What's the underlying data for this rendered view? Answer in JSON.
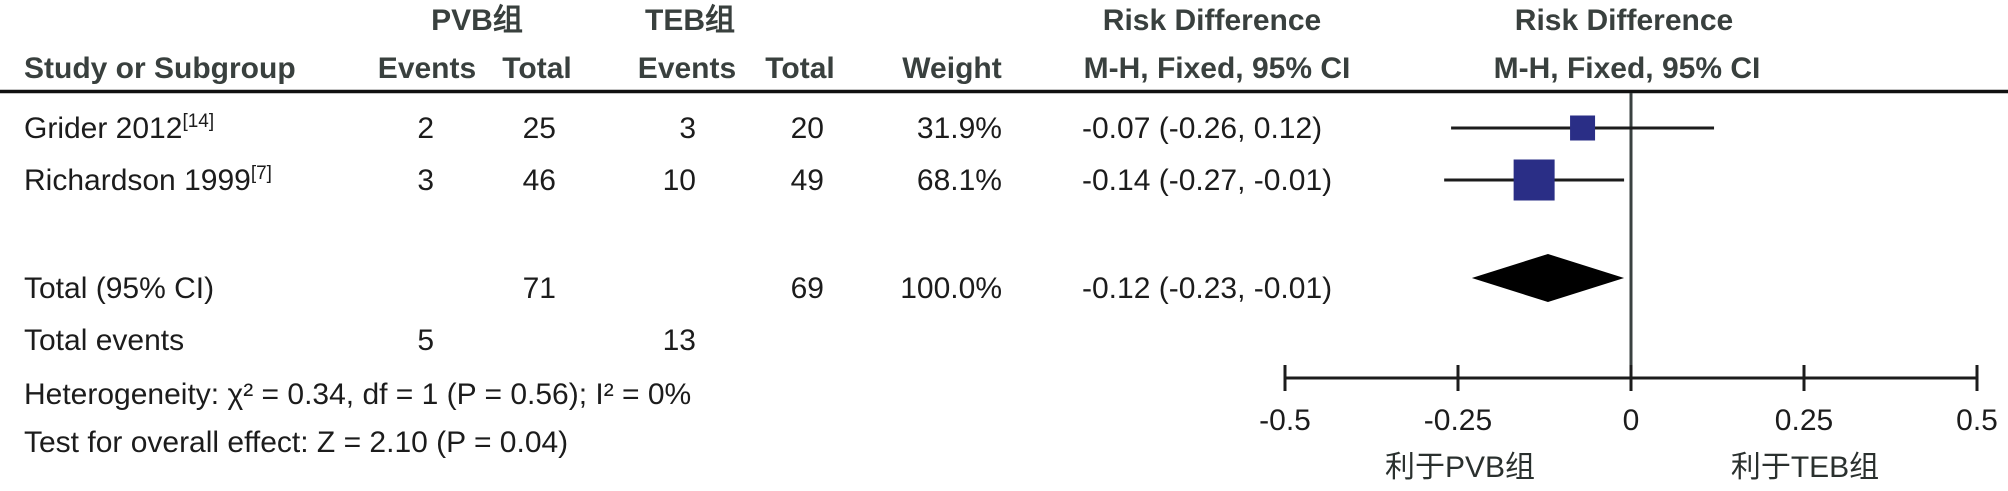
{
  "header": {
    "group1": "PVB组",
    "group2": "TEB组",
    "risk_difference": "Risk Difference",
    "method": "M-H, Fixed, 95% CI",
    "study": "Study or Subgroup",
    "events": "Events",
    "total": "Total",
    "weight": "Weight"
  },
  "rows": [
    {
      "study": "Grider 2012",
      "ref": "[14]",
      "e1": "2",
      "t1": "25",
      "e2": "3",
      "t2": "20",
      "weight": "31.9%",
      "ci": "-0.07 (-0.26, 0.12)"
    },
    {
      "study": "Richardson 1999",
      "ref": "[7]",
      "e1": "3",
      "t1": "46",
      "e2": "10",
      "t2": "49",
      "weight": "68.1%",
      "ci": "-0.14 (-0.27, -0.01)"
    }
  ],
  "total_row": {
    "label": "Total (95% CI)",
    "t1": "71",
    "t2": "69",
    "weight": "100.0%",
    "ci": "-0.12 (-0.23, -0.01)"
  },
  "total_events": {
    "label": "Total events",
    "e1": "5",
    "e2": "13"
  },
  "footer": {
    "heterogeneity": "Heterogeneity: χ² = 0.34, df = 1 (P = 0.56); I² = 0%",
    "overall": "Test for overall effect: Z = 2.10 (P = 0.04)"
  },
  "axis": {
    "tick_labels": [
      "-0.5",
      "-0.25",
      "0",
      "0.25",
      "0.5"
    ],
    "left_label": "利于PVB组",
    "right_label": "利于TEB组"
  },
  "colors": {
    "square": "#2a2e86",
    "diamond": "#000000",
    "ci_line": "#1c1c1c",
    "axis_line": "#1c1c1c",
    "zero_line": "#3a4140",
    "rule": "#111111"
  },
  "chart_data": {
    "type": "forest",
    "effect_measure": "Risk Difference (M-H, Fixed, 95% CI)",
    "x_range": [
      -0.5,
      0.5
    ],
    "x_ticks": [
      -0.5,
      -0.25,
      0,
      0.25,
      0.5
    ],
    "studies": [
      {
        "name": "Grider 2012",
        "events_pvb": 2,
        "total_pvb": 25,
        "events_teb": 3,
        "total_teb": 20,
        "weight_pct": 31.9,
        "rd": -0.07,
        "ci_low": -0.26,
        "ci_high": 0.12
      },
      {
        "name": "Richardson 1999",
        "events_pvb": 3,
        "total_pvb": 46,
        "events_teb": 10,
        "total_teb": 49,
        "weight_pct": 68.1,
        "rd": -0.14,
        "ci_low": -0.27,
        "ci_high": -0.01
      }
    ],
    "total": {
      "total_pvb": 71,
      "total_teb": 69,
      "events_pvb": 5,
      "events_teb": 13,
      "weight_pct": 100.0,
      "rd": -0.12,
      "ci_low": -0.23,
      "ci_high": -0.01
    },
    "stats": {
      "chi2": 0.34,
      "df": 1,
      "p_heterogeneity": 0.56,
      "i2_pct": 0,
      "z": 2.1,
      "p_overall": 0.04
    },
    "favors_left": "利于PVB组",
    "favors_right": "利于TEB组"
  }
}
